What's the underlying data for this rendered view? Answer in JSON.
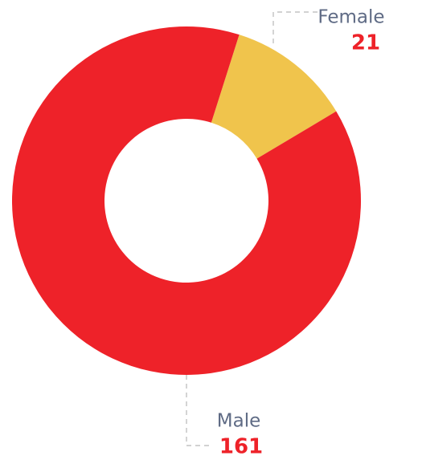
{
  "chart_data": {
    "type": "pie",
    "categories": [
      "Female",
      "Male"
    ],
    "values": [
      21,
      161
    ],
    "colors": [
      "#f0c44c",
      "#ee2229"
    ]
  }
}
